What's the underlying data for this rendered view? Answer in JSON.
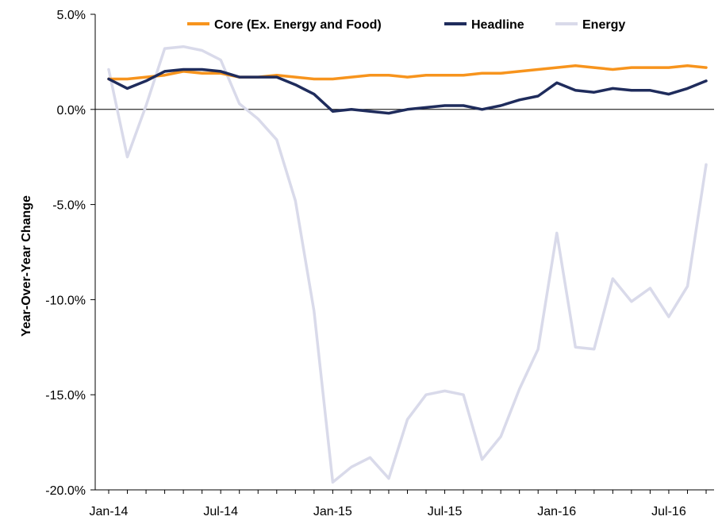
{
  "chart_data": {
    "type": "line",
    "title": "",
    "xlabel": "",
    "ylabel": "Year-Over-Year Change",
    "x": [
      "Jan-14",
      "Feb-14",
      "Mar-14",
      "Apr-14",
      "May-14",
      "Jun-14",
      "Jul-14",
      "Aug-14",
      "Sep-14",
      "Oct-14",
      "Nov-14",
      "Dec-14",
      "Jan-15",
      "Feb-15",
      "Mar-15",
      "Apr-15",
      "May-15",
      "Jun-15",
      "Jul-15",
      "Aug-15",
      "Sep-15",
      "Oct-15",
      "Nov-15",
      "Dec-15",
      "Jan-16",
      "Feb-16",
      "Mar-16",
      "Apr-16",
      "May-16",
      "Jun-16",
      "Jul-16",
      "Aug-16",
      "Sep-16"
    ],
    "x_tick_labels": [
      "Jan-14",
      "Jul-14",
      "Jan-15",
      "Jul-15",
      "Jan-16",
      "Jul-16"
    ],
    "x_tick_indices": [
      0,
      6,
      12,
      18,
      24,
      30
    ],
    "ylim": [
      -20,
      5
    ],
    "y_ticks": [
      5,
      0,
      -5,
      -10,
      -15,
      -20
    ],
    "y_tick_labels": [
      "5.0%",
      "0.0%",
      "-5.0%",
      "-10.0%",
      "-15.0%",
      "-20.0%"
    ],
    "grid": false,
    "legend_position": "top",
    "series": [
      {
        "name": "Core (Ex. Energy and Food)",
        "color": "#F7941D",
        "values": [
          1.6,
          1.6,
          1.7,
          1.8,
          2.0,
          1.9,
          1.9,
          1.7,
          1.7,
          1.8,
          1.7,
          1.6,
          1.6,
          1.7,
          1.8,
          1.8,
          1.7,
          1.8,
          1.8,
          1.8,
          1.9,
          1.9,
          2.0,
          2.1,
          2.2,
          2.3,
          2.2,
          2.1,
          2.2,
          2.2,
          2.2,
          2.3,
          2.2
        ]
      },
      {
        "name": "Headline",
        "color": "#1F2C5C",
        "values": [
          1.6,
          1.1,
          1.5,
          2.0,
          2.1,
          2.1,
          2.0,
          1.7,
          1.7,
          1.7,
          1.3,
          0.8,
          -0.1,
          0.0,
          -0.1,
          -0.2,
          0.0,
          0.1,
          0.2,
          0.2,
          0.0,
          0.2,
          0.5,
          0.7,
          1.4,
          1.0,
          0.9,
          1.1,
          1.0,
          1.0,
          0.8,
          1.1,
          1.5
        ]
      },
      {
        "name": "Energy",
        "color": "#D9DAEA",
        "values": [
          2.1,
          -2.5,
          0.2,
          3.2,
          3.3,
          3.1,
          2.6,
          0.3,
          -0.5,
          -1.6,
          -4.8,
          -10.6,
          -19.6,
          -18.8,
          -18.3,
          -19.4,
          -16.3,
          -15.0,
          -14.8,
          -15.0,
          -18.4,
          -17.2,
          -14.7,
          -12.6,
          -6.5,
          -12.5,
          -12.6,
          -8.9,
          -10.1,
          -9.4,
          -10.9,
          -9.3,
          -2.9
        ]
      }
    ]
  }
}
